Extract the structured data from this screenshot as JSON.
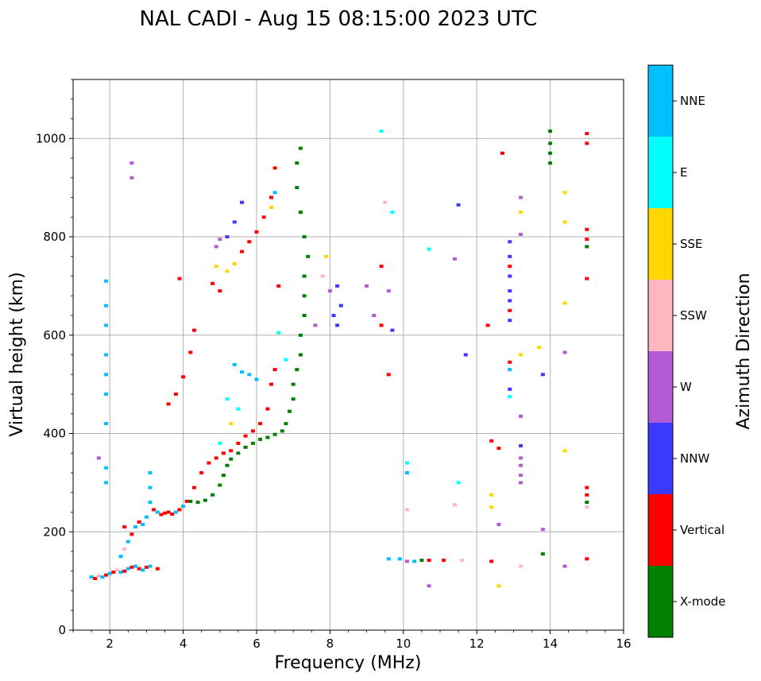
{
  "title": "NAL CADI - Aug 15 08:15:00 2023 UTC",
  "chart_data": {
    "type": "scatter",
    "title": "NAL CADI - Aug 15 08:15:00 2023 UTC",
    "xlabel": "Frequency (MHz)",
    "ylabel": "Virtual height (km)",
    "xlim": [
      1,
      16
    ],
    "ylim": [
      0,
      1120
    ],
    "xticks": [
      2,
      4,
      6,
      8,
      10,
      12,
      14,
      16
    ],
    "yticks": [
      0,
      200,
      400,
      600,
      800,
      1000
    ],
    "grid": true,
    "colorbar": {
      "label": "Azimuth Direction",
      "categories": [
        {
          "name": "X-mode",
          "color": "#008000"
        },
        {
          "name": "Vertical",
          "color": "#ff0000"
        },
        {
          "name": "NNW",
          "color": "#3a3aff"
        },
        {
          "name": "W",
          "color": "#b35ad6"
        },
        {
          "name": "SSW",
          "color": "#ffb6c1"
        },
        {
          "name": "SSE",
          "color": "#ffd700"
        },
        {
          "name": "E",
          "color": "#00ffff"
        },
        {
          "name": "NNE",
          "color": "#00bfff"
        }
      ]
    },
    "points": [
      [
        1.5,
        108,
        "NNE"
      ],
      [
        1.6,
        105,
        "Vertical"
      ],
      [
        1.7,
        110,
        "SSW"
      ],
      [
        1.8,
        108,
        "NNE"
      ],
      [
        1.9,
        112,
        "Vertical"
      ],
      [
        2.0,
        115,
        "NNE"
      ],
      [
        2.1,
        118,
        "Vertical"
      ],
      [
        2.2,
        122,
        "SSW"
      ],
      [
        2.3,
        118,
        "NNE"
      ],
      [
        2.4,
        120,
        "Vertical"
      ],
      [
        2.5,
        125,
        "NNE"
      ],
      [
        2.6,
        128,
        "Vertical"
      ],
      [
        2.7,
        130,
        "NNE"
      ],
      [
        2.8,
        125,
        "Vertical"
      ],
      [
        2.9,
        122,
        "NNE"
      ],
      [
        3.0,
        128,
        "Vertical"
      ],
      [
        3.1,
        130,
        "NNE"
      ],
      [
        3.3,
        125,
        "Vertical"
      ],
      [
        2.3,
        150,
        "NNE"
      ],
      [
        2.4,
        165,
        "SSW"
      ],
      [
        2.5,
        180,
        "NNE"
      ],
      [
        2.6,
        195,
        "Vertical"
      ],
      [
        2.7,
        210,
        "NNE"
      ],
      [
        2.8,
        220,
        "Vertical"
      ],
      [
        2.9,
        215,
        "NNE"
      ],
      [
        3.0,
        230,
        "NNE"
      ],
      [
        3.1,
        260,
        "NNE"
      ],
      [
        3.1,
        290,
        "NNE"
      ],
      [
        3.1,
        320,
        "NNE"
      ],
      [
        3.2,
        245,
        "Vertical"
      ],
      [
        3.3,
        240,
        "NNE"
      ],
      [
        3.4,
        235,
        "Vertical"
      ],
      [
        3.5,
        238,
        "Vertical"
      ],
      [
        3.6,
        240,
        "Vertical"
      ],
      [
        3.7,
        236,
        "Vertical"
      ],
      [
        3.8,
        240,
        "NNE"
      ],
      [
        3.9,
        245,
        "Vertical"
      ],
      [
        4.0,
        252,
        "NNE"
      ],
      [
        4.1,
        262,
        "Vertical"
      ],
      [
        4.2,
        262,
        "X-mode"
      ],
      [
        4.4,
        260,
        "X-mode"
      ],
      [
        4.6,
        264,
        "X-mode"
      ],
      [
        4.8,
        275,
        "X-mode"
      ],
      [
        5.0,
        295,
        "X-mode"
      ],
      [
        5.1,
        315,
        "X-mode"
      ],
      [
        5.2,
        335,
        "X-mode"
      ],
      [
        5.3,
        348,
        "X-mode"
      ],
      [
        5.5,
        360,
        "X-mode"
      ],
      [
        5.7,
        372,
        "X-mode"
      ],
      [
        5.9,
        380,
        "X-mode"
      ],
      [
        6.1,
        388,
        "X-mode"
      ],
      [
        6.3,
        392,
        "X-mode"
      ],
      [
        6.5,
        398,
        "X-mode"
      ],
      [
        6.7,
        405,
        "X-mode"
      ],
      [
        6.8,
        420,
        "X-mode"
      ],
      [
        6.9,
        445,
        "X-mode"
      ],
      [
        7.0,
        470,
        "X-mode"
      ],
      [
        7.0,
        500,
        "X-mode"
      ],
      [
        7.1,
        530,
        "X-mode"
      ],
      [
        7.2,
        560,
        "X-mode"
      ],
      [
        7.2,
        600,
        "X-mode"
      ],
      [
        7.3,
        640,
        "X-mode"
      ],
      [
        7.3,
        680,
        "X-mode"
      ],
      [
        7.3,
        720,
        "X-mode"
      ],
      [
        7.4,
        760,
        "X-mode"
      ],
      [
        7.3,
        800,
        "X-mode"
      ],
      [
        7.2,
        850,
        "X-mode"
      ],
      [
        7.1,
        900,
        "X-mode"
      ],
      [
        7.1,
        950,
        "X-mode"
      ],
      [
        7.2,
        980,
        "X-mode"
      ],
      [
        4.3,
        290,
        "Vertical"
      ],
      [
        4.5,
        320,
        "Vertical"
      ],
      [
        4.7,
        340,
        "Vertical"
      ],
      [
        4.9,
        350,
        "Vertical"
      ],
      [
        5.1,
        360,
        "Vertical"
      ],
      [
        5.3,
        365,
        "Vertical"
      ],
      [
        5.5,
        380,
        "Vertical"
      ],
      [
        5.7,
        395,
        "Vertical"
      ],
      [
        5.9,
        405,
        "Vertical"
      ],
      [
        6.1,
        420,
        "Vertical"
      ],
      [
        6.3,
        450,
        "Vertical"
      ],
      [
        6.4,
        500,
        "Vertical"
      ],
      [
        6.5,
        530,
        "Vertical"
      ],
      [
        3.6,
        460,
        "Vertical"
      ],
      [
        3.8,
        480,
        "Vertical"
      ],
      [
        4.0,
        515,
        "Vertical"
      ],
      [
        4.2,
        565,
        "Vertical"
      ],
      [
        4.3,
        610,
        "Vertical"
      ],
      [
        3.9,
        715,
        "Vertical"
      ],
      [
        5.4,
        540,
        "NNE"
      ],
      [
        5.6,
        525,
        "NNE"
      ],
      [
        5.8,
        520,
        "NNE"
      ],
      [
        6.0,
        510,
        "NNE"
      ],
      [
        5.2,
        470,
        "E"
      ],
      [
        5.5,
        450,
        "E"
      ],
      [
        5.3,
        420,
        "SSE"
      ],
      [
        5.0,
        380,
        "E"
      ],
      [
        6.8,
        550,
        "E"
      ],
      [
        6.6,
        605,
        "E"
      ],
      [
        4.9,
        740,
        "SSE"
      ],
      [
        5.2,
        730,
        "SSE"
      ],
      [
        5.4,
        745,
        "SSE"
      ],
      [
        4.8,
        705,
        "Vertical"
      ],
      [
        5.0,
        690,
        "Vertical"
      ],
      [
        5.6,
        770,
        "Vertical"
      ],
      [
        5.8,
        790,
        "Vertical"
      ],
      [
        6.0,
        810,
        "Vertical"
      ],
      [
        6.2,
        840,
        "Vertical"
      ],
      [
        6.4,
        880,
        "Vertical"
      ],
      [
        6.6,
        700,
        "Vertical"
      ],
      [
        6.5,
        940,
        "Vertical"
      ],
      [
        5.2,
        800,
        "NNW"
      ],
      [
        5.4,
        830,
        "NNW"
      ],
      [
        5.6,
        870,
        "NNW"
      ],
      [
        5.0,
        795,
        "W"
      ],
      [
        4.9,
        780,
        "W"
      ],
      [
        6.5,
        890,
        "NNE"
      ],
      [
        6.4,
        860,
        "SSE"
      ],
      [
        8.2,
        620,
        "NNW"
      ],
      [
        8.1,
        640,
        "NNW"
      ],
      [
        8.3,
        660,
        "NNW"
      ],
      [
        8.0,
        690,
        "W"
      ],
      [
        8.2,
        700,
        "NNW"
      ],
      [
        7.8,
        720,
        "SSW"
      ],
      [
        7.9,
        760,
        "SSE"
      ],
      [
        7.6,
        620,
        "W"
      ],
      [
        1.9,
        300,
        "NNE"
      ],
      [
        1.9,
        330,
        "NNE"
      ],
      [
        1.9,
        420,
        "NNE"
      ],
      [
        1.9,
        480,
        "NNE"
      ],
      [
        1.9,
        520,
        "NNE"
      ],
      [
        1.9,
        560,
        "NNE"
      ],
      [
        1.9,
        620,
        "NNE"
      ],
      [
        1.9,
        660,
        "NNE"
      ],
      [
        1.9,
        710,
        "NNE"
      ],
      [
        1.7,
        350,
        "W"
      ],
      [
        2.6,
        920,
        "W"
      ],
      [
        2.6,
        950,
        "W"
      ],
      [
        2.4,
        210,
        "Vertical"
      ],
      [
        9.0,
        700,
        "W"
      ],
      [
        9.2,
        640,
        "W"
      ],
      [
        9.4,
        620,
        "Vertical"
      ],
      [
        9.4,
        740,
        "Vertical"
      ],
      [
        9.6,
        690,
        "W"
      ],
      [
        9.5,
        870,
        "SSW"
      ],
      [
        9.7,
        850,
        "E"
      ],
      [
        9.6,
        520,
        "Vertical"
      ],
      [
        9.4,
        1015,
        "E"
      ],
      [
        9.7,
        610,
        "NNW"
      ],
      [
        9.6,
        145,
        "NNE"
      ],
      [
        9.9,
        145,
        "NNE"
      ],
      [
        10.1,
        140,
        "W"
      ],
      [
        10.3,
        140,
        "NNE"
      ],
      [
        10.5,
        142,
        "X-mode"
      ],
      [
        10.7,
        142,
        "Vertical"
      ],
      [
        11.1,
        142,
        "Vertical"
      ],
      [
        11.6,
        142,
        "SSW"
      ],
      [
        10.1,
        340,
        "E"
      ],
      [
        10.1,
        320,
        "NNE"
      ],
      [
        10.1,
        245,
        "SSW"
      ],
      [
        10.7,
        775,
        "E"
      ],
      [
        10.7,
        90,
        "W"
      ],
      [
        11.4,
        255,
        "SSW"
      ],
      [
        11.5,
        300,
        "E"
      ],
      [
        11.4,
        755,
        "W"
      ],
      [
        11.5,
        865,
        "NNW"
      ],
      [
        11.7,
        560,
        "NNW"
      ],
      [
        12.3,
        620,
        "Vertical"
      ],
      [
        12.4,
        140,
        "Vertical"
      ],
      [
        12.4,
        250,
        "SSE"
      ],
      [
        12.4,
        275,
        "SSE"
      ],
      [
        12.4,
        385,
        "Vertical"
      ],
      [
        12.6,
        370,
        "Vertical"
      ],
      [
        12.7,
        970,
        "Vertical"
      ],
      [
        12.6,
        215,
        "W"
      ],
      [
        12.6,
        90,
        "SSE"
      ],
      [
        12.9,
        790,
        "NNW"
      ],
      [
        12.9,
        760,
        "NNW"
      ],
      [
        12.9,
        740,
        "Vertical"
      ],
      [
        12.9,
        720,
        "NNW"
      ],
      [
        12.9,
        690,
        "NNW"
      ],
      [
        12.9,
        670,
        "NNW"
      ],
      [
        12.9,
        650,
        "Vertical"
      ],
      [
        12.9,
        630,
        "NNW"
      ],
      [
        12.9,
        545,
        "Vertical"
      ],
      [
        12.9,
        530,
        "NNE"
      ],
      [
        12.9,
        490,
        "NNW"
      ],
      [
        12.9,
        475,
        "E"
      ],
      [
        13.2,
        880,
        "W"
      ],
      [
        13.2,
        850,
        "SSE"
      ],
      [
        13.2,
        805,
        "W"
      ],
      [
        13.2,
        560,
        "SSE"
      ],
      [
        13.2,
        435,
        "W"
      ],
      [
        13.2,
        375,
        "NNW"
      ],
      [
        13.2,
        350,
        "W"
      ],
      [
        13.2,
        335,
        "W"
      ],
      [
        13.2,
        315,
        "W"
      ],
      [
        13.2,
        300,
        "W"
      ],
      [
        13.2,
        130,
        "SSW"
      ],
      [
        13.7,
        575,
        "SSE"
      ],
      [
        13.8,
        520,
        "NNW"
      ],
      [
        13.8,
        205,
        "W"
      ],
      [
        13.8,
        155,
        "X-mode"
      ],
      [
        14.0,
        1015,
        "X-mode"
      ],
      [
        14.0,
        990,
        "X-mode"
      ],
      [
        14.0,
        970,
        "X-mode"
      ],
      [
        14.0,
        950,
        "X-mode"
      ],
      [
        14.4,
        890,
        "SSE"
      ],
      [
        14.4,
        830,
        "SSE"
      ],
      [
        14.4,
        665,
        "SSE"
      ],
      [
        14.4,
        565,
        "W"
      ],
      [
        14.4,
        365,
        "SSE"
      ],
      [
        14.4,
        130,
        "W"
      ],
      [
        15.0,
        1010,
        "Vertical"
      ],
      [
        15.0,
        990,
        "Vertical"
      ],
      [
        15.0,
        815,
        "Vertical"
      ],
      [
        15.0,
        795,
        "Vertical"
      ],
      [
        15.0,
        780,
        "X-mode"
      ],
      [
        15.0,
        715,
        "Vertical"
      ],
      [
        15.0,
        290,
        "Vertical"
      ],
      [
        15.0,
        275,
        "Vertical"
      ],
      [
        15.0,
        260,
        "X-mode"
      ],
      [
        15.0,
        250,
        "SSW"
      ],
      [
        15.0,
        145,
        "Vertical"
      ]
    ]
  }
}
